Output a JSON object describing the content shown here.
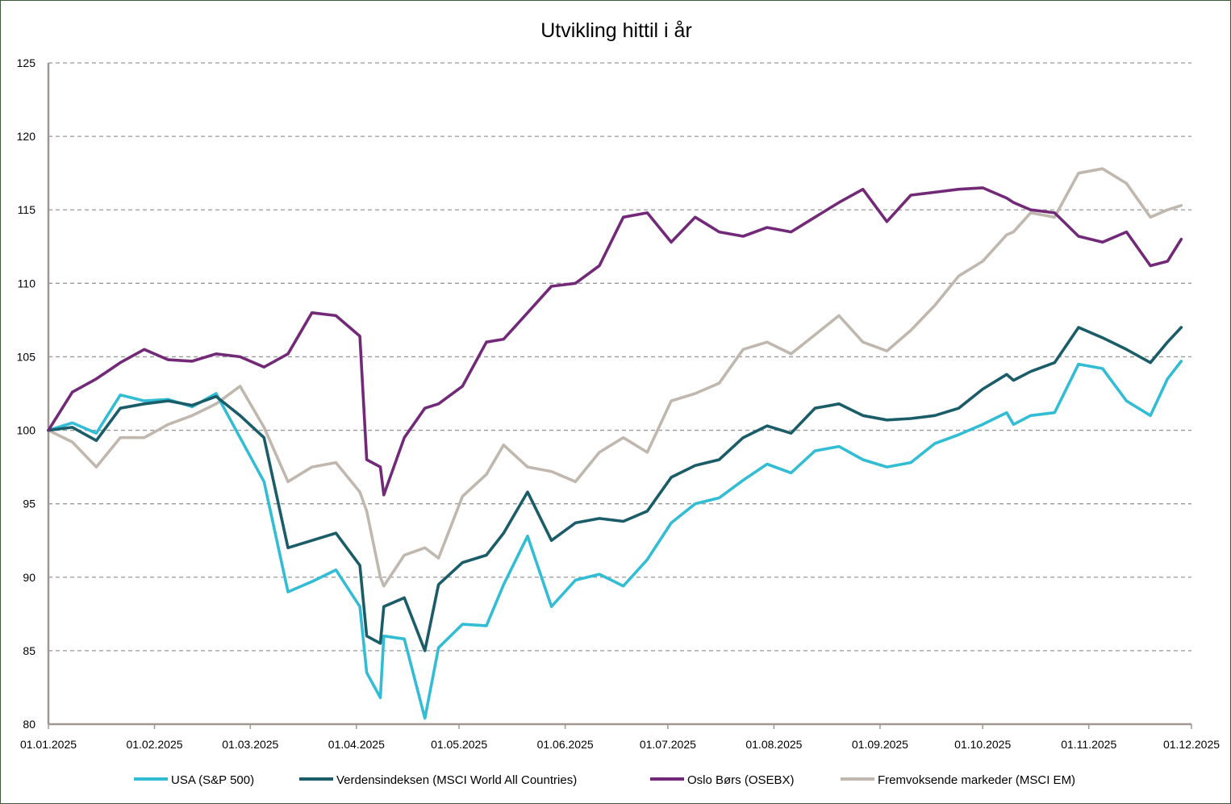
{
  "chart_data": {
    "type": "line",
    "title": "Utvikling hittil i år",
    "xlabel": "",
    "ylabel": "",
    "ylim": [
      80,
      125
    ],
    "yticks": [
      80,
      85,
      90,
      95,
      100,
      105,
      110,
      115,
      120,
      125
    ],
    "xlim": [
      "2025-01-01",
      "2025-12-01"
    ],
    "xticks": [
      "01.01.2025",
      "01.02.2025",
      "01.03.2025",
      "01.04.2025",
      "01.05.2025",
      "01.06.2025",
      "01.07.2025",
      "01.08.2025",
      "01.09.2025",
      "01.10.2025",
      "01.11.2025",
      "01.12.2025"
    ],
    "grid": "horizontal dashed",
    "legend": "bottom",
    "series": [
      {
        "name": "USA (S&P 500)",
        "color": "#33bdd4",
        "x": [
          "2025-01-01",
          "2025-01-08",
          "2025-01-15",
          "2025-01-22",
          "2025-01-29",
          "2025-02-05",
          "2025-02-12",
          "2025-02-19",
          "2025-02-26",
          "2025-03-05",
          "2025-03-12",
          "2025-03-19",
          "2025-03-26",
          "2025-04-02",
          "2025-04-04",
          "2025-04-08",
          "2025-04-09",
          "2025-04-15",
          "2025-04-21",
          "2025-04-25",
          "2025-05-02",
          "2025-05-09",
          "2025-05-14",
          "2025-05-21",
          "2025-05-28",
          "2025-06-04",
          "2025-06-11",
          "2025-06-18",
          "2025-06-25",
          "2025-07-02",
          "2025-07-09",
          "2025-07-16",
          "2025-07-23",
          "2025-07-30",
          "2025-08-06",
          "2025-08-13",
          "2025-08-20",
          "2025-08-27",
          "2025-09-03",
          "2025-09-10",
          "2025-09-17",
          "2025-09-24",
          "2025-10-01",
          "2025-10-08",
          "2025-10-10",
          "2025-10-15",
          "2025-10-22",
          "2025-10-29",
          "2025-11-05",
          "2025-11-12",
          "2025-11-19",
          "2025-11-24",
          "2025-11-28"
        ],
        "values": [
          100,
          100.5,
          99.8,
          102.4,
          102,
          102.1,
          101.6,
          102.5,
          99.5,
          96.5,
          89,
          89.7,
          90.5,
          88,
          83.5,
          81.8,
          86,
          85.8,
          80.4,
          85.2,
          86.8,
          86.7,
          89.5,
          92.8,
          88,
          89.8,
          90.2,
          89.4,
          91.2,
          93.7,
          95,
          95.4,
          96.6,
          97.7,
          97.1,
          98.6,
          98.9,
          98,
          97.5,
          97.8,
          99.1,
          99.7,
          100.4,
          101.2,
          100.4,
          101,
          101.2,
          104.5,
          104.2,
          102,
          101,
          103.5,
          104.7
        ]
      },
      {
        "name": "Verdensindeksen (MSCI World All Countries)",
        "color": "#1a5c68",
        "x": [
          "2025-01-01",
          "2025-01-08",
          "2025-01-15",
          "2025-01-22",
          "2025-01-29",
          "2025-02-05",
          "2025-02-12",
          "2025-02-19",
          "2025-02-26",
          "2025-03-05",
          "2025-03-12",
          "2025-03-19",
          "2025-03-26",
          "2025-04-02",
          "2025-04-04",
          "2025-04-08",
          "2025-04-09",
          "2025-04-15",
          "2025-04-21",
          "2025-04-25",
          "2025-05-02",
          "2025-05-09",
          "2025-05-14",
          "2025-05-21",
          "2025-05-28",
          "2025-06-04",
          "2025-06-11",
          "2025-06-18",
          "2025-06-25",
          "2025-07-02",
          "2025-07-09",
          "2025-07-16",
          "2025-07-23",
          "2025-07-30",
          "2025-08-06",
          "2025-08-13",
          "2025-08-20",
          "2025-08-27",
          "2025-09-03",
          "2025-09-10",
          "2025-09-17",
          "2025-09-24",
          "2025-10-01",
          "2025-10-08",
          "2025-10-10",
          "2025-10-15",
          "2025-10-22",
          "2025-10-29",
          "2025-11-05",
          "2025-11-12",
          "2025-11-19",
          "2025-11-24",
          "2025-11-28"
        ],
        "values": [
          100,
          100.2,
          99.3,
          101.5,
          101.8,
          102,
          101.7,
          102.3,
          101,
          99.5,
          92,
          92.5,
          93,
          90.8,
          86,
          85.5,
          88,
          88.6,
          85,
          89.5,
          91,
          91.5,
          93,
          95.8,
          92.5,
          93.7,
          94,
          93.8,
          94.5,
          96.8,
          97.6,
          98,
          99.5,
          100.3,
          99.8,
          101.5,
          101.8,
          101,
          100.7,
          100.8,
          101,
          101.5,
          102.8,
          103.8,
          103.4,
          104,
          104.6,
          107,
          106.3,
          105.5,
          104.6,
          106,
          107
        ]
      },
      {
        "name": "Oslo Børs (OSEBX)",
        "color": "#722a78",
        "x": [
          "2025-01-01",
          "2025-01-08",
          "2025-01-15",
          "2025-01-22",
          "2025-01-29",
          "2025-02-05",
          "2025-02-12",
          "2025-02-19",
          "2025-02-26",
          "2025-03-05",
          "2025-03-12",
          "2025-03-19",
          "2025-03-26",
          "2025-04-02",
          "2025-04-04",
          "2025-04-08",
          "2025-04-09",
          "2025-04-15",
          "2025-04-21",
          "2025-04-25",
          "2025-05-02",
          "2025-05-09",
          "2025-05-14",
          "2025-05-21",
          "2025-05-28",
          "2025-06-04",
          "2025-06-11",
          "2025-06-18",
          "2025-06-25",
          "2025-07-02",
          "2025-07-09",
          "2025-07-16",
          "2025-07-23",
          "2025-07-30",
          "2025-08-06",
          "2025-08-13",
          "2025-08-20",
          "2025-08-27",
          "2025-09-03",
          "2025-09-10",
          "2025-09-17",
          "2025-09-24",
          "2025-10-01",
          "2025-10-08",
          "2025-10-10",
          "2025-10-15",
          "2025-10-22",
          "2025-10-29",
          "2025-11-05",
          "2025-11-12",
          "2025-11-19",
          "2025-11-24",
          "2025-11-28"
        ],
        "values": [
          100,
          102.6,
          103.5,
          104.6,
          105.5,
          104.8,
          104.7,
          105.2,
          105,
          104.3,
          105.2,
          108,
          107.8,
          106.4,
          98,
          97.5,
          95.6,
          99.5,
          101.5,
          101.8,
          103,
          106,
          106.2,
          108,
          109.8,
          110,
          111.2,
          114.5,
          114.8,
          112.8,
          114.5,
          113.5,
          113.2,
          113.8,
          113.5,
          114.5,
          115.5,
          116.4,
          114.2,
          116,
          116.2,
          116.4,
          116.5,
          115.8,
          115.5,
          115,
          114.8,
          113.2,
          112.8,
          113.5,
          111.2,
          111.5,
          113
        ]
      },
      {
        "name": "Fremvoksende markeder (MSCI EM)",
        "color": "#c0b8ae",
        "x": [
          "2025-01-01",
          "2025-01-08",
          "2025-01-15",
          "2025-01-22",
          "2025-01-29",
          "2025-02-05",
          "2025-02-12",
          "2025-02-19",
          "2025-02-26",
          "2025-03-05",
          "2025-03-12",
          "2025-03-19",
          "2025-03-26",
          "2025-04-02",
          "2025-04-04",
          "2025-04-08",
          "2025-04-09",
          "2025-04-15",
          "2025-04-21",
          "2025-04-25",
          "2025-05-02",
          "2025-05-09",
          "2025-05-14",
          "2025-05-21",
          "2025-05-28",
          "2025-06-04",
          "2025-06-11",
          "2025-06-18",
          "2025-06-25",
          "2025-07-02",
          "2025-07-09",
          "2025-07-16",
          "2025-07-23",
          "2025-07-30",
          "2025-08-06",
          "2025-08-13",
          "2025-08-20",
          "2025-08-27",
          "2025-09-03",
          "2025-09-10",
          "2025-09-17",
          "2025-09-24",
          "2025-10-01",
          "2025-10-08",
          "2025-10-10",
          "2025-10-15",
          "2025-10-22",
          "2025-10-29",
          "2025-11-05",
          "2025-11-12",
          "2025-11-19",
          "2025-11-24",
          "2025-11-28"
        ],
        "values": [
          100,
          99.2,
          97.5,
          99.5,
          99.5,
          100.4,
          101,
          101.8,
          103,
          100.2,
          96.5,
          97.5,
          97.8,
          95.8,
          94.5,
          90,
          89.4,
          91.5,
          92,
          91.3,
          95.5,
          97,
          99,
          97.5,
          97.2,
          96.5,
          98.5,
          99.5,
          98.5,
          102,
          102.5,
          103.2,
          105.5,
          106,
          105.2,
          106.5,
          107.8,
          106,
          105.4,
          106.8,
          108.5,
          110.5,
          111.5,
          113.3,
          113.5,
          114.8,
          114.5,
          117.5,
          117.8,
          116.8,
          114.5,
          115,
          115.3
        ]
      }
    ]
  }
}
